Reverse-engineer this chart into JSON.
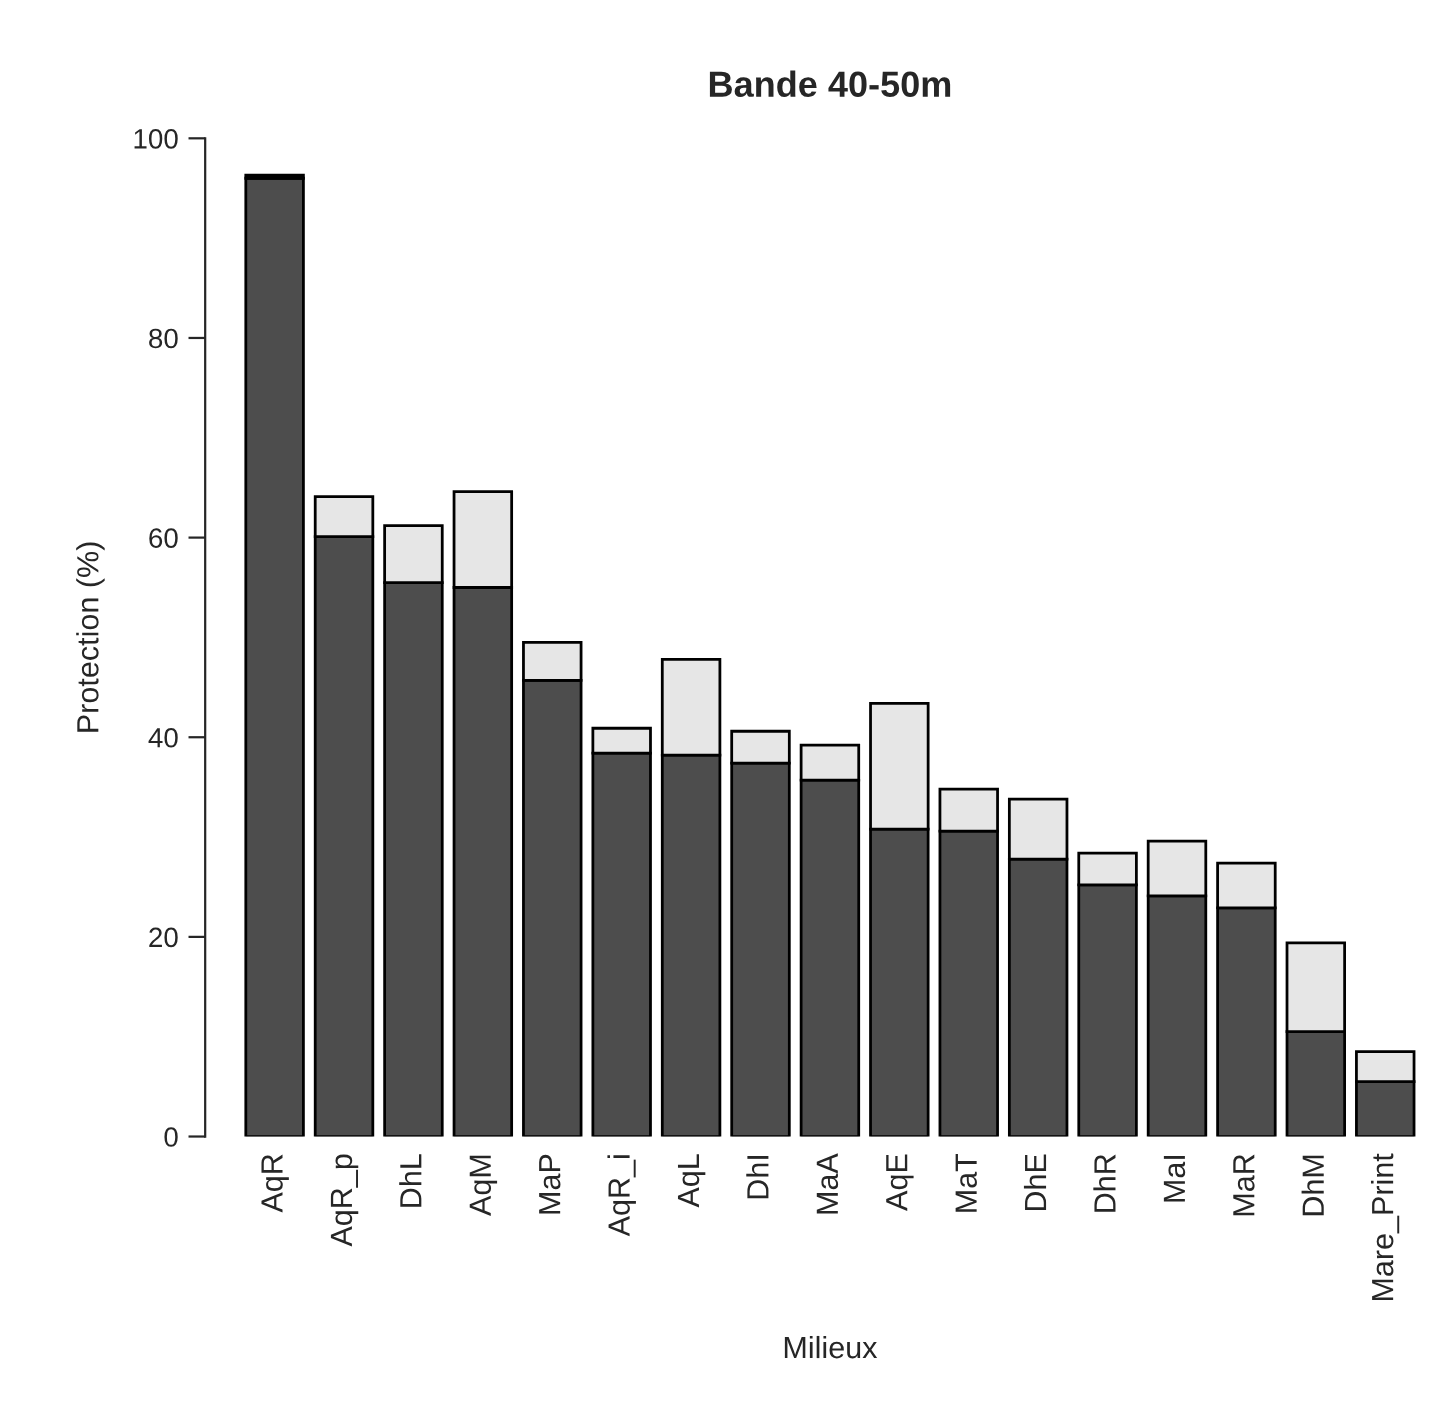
{
  "chart_data": {
    "type": "bar",
    "title": "Bande 40-50m",
    "xlabel": "Milieux",
    "ylabel": "Protection (%)",
    "stacked": true,
    "categories": [
      "AqR",
      "AqR_p",
      "DhL",
      "AqM",
      "MaP",
      "AqR_i",
      "AqL",
      "DhI",
      "MaA",
      "AqE",
      "MaT",
      "DhE",
      "DhR",
      "MaI",
      "MaR",
      "DhM",
      "Mare_Print"
    ],
    "series": [
      {
        "color": "#4d4d4d",
        "values": [
          96.0,
          60.1,
          55.5,
          55.0,
          45.7,
          38.4,
          38.2,
          37.4,
          35.7,
          30.8,
          30.6,
          27.8,
          25.2,
          24.1,
          22.9,
          10.5,
          5.5
        ]
      },
      {
        "color": "#e6e6e6",
        "values": [
          0.3,
          4.0,
          5.7,
          9.6,
          3.8,
          2.5,
          9.6,
          3.2,
          3.5,
          12.6,
          4.2,
          6.0,
          3.2,
          5.5,
          4.5,
          8.9,
          3.0
        ]
      }
    ],
    "ylim": [
      0,
      100
    ],
    "yticks": [
      0,
      20,
      40,
      60,
      80,
      100
    ],
    "grid": false,
    "legend": false
  }
}
